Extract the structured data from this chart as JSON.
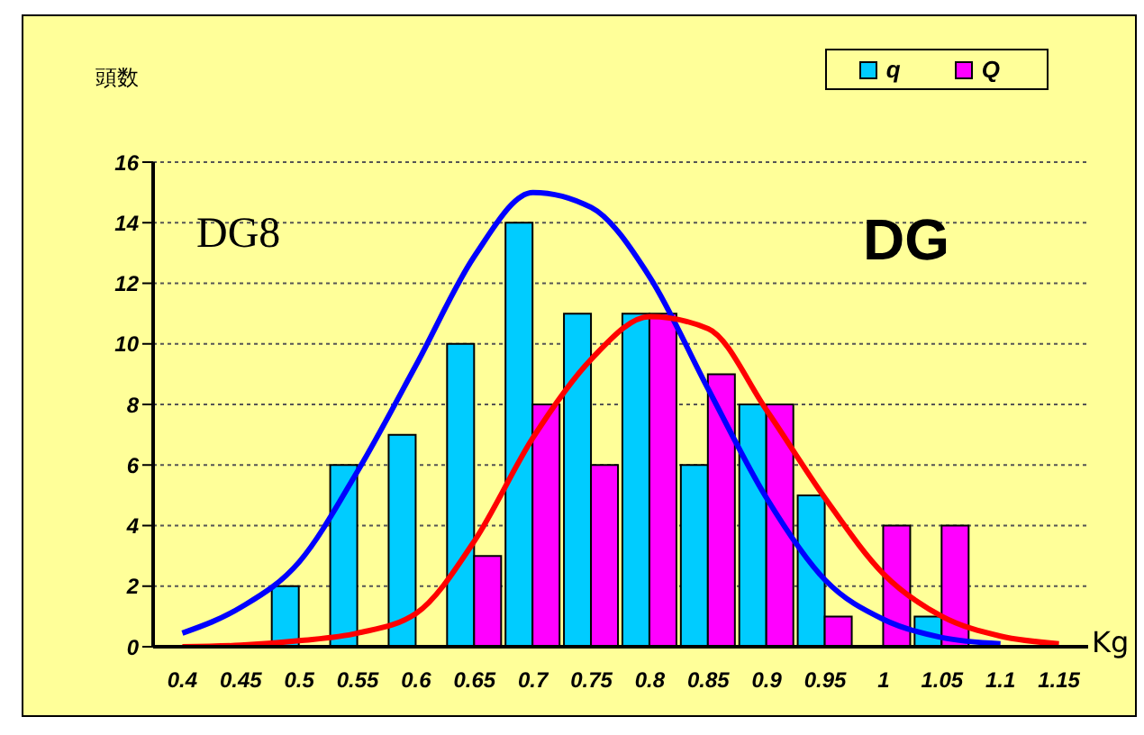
{
  "chart_data": {
    "type": "bar",
    "ylabel": "頭数",
    "xlabel": "Kg",
    "categories": [
      "0.4",
      "0.45",
      "0.5",
      "0.55",
      "0.6",
      "0.65",
      "0.7",
      "0.75",
      "0.8",
      "0.85",
      "0.9",
      "0.95",
      "1",
      "1.05",
      "1.1",
      "1.15"
    ],
    "series": [
      {
        "name": "q",
        "color": "#00ccff",
        "values": [
          0,
          0,
          2,
          6,
          7,
          10,
          14,
          11,
          11,
          6,
          8,
          5,
          0,
          1,
          0,
          0
        ]
      },
      {
        "name": "Q",
        "color": "#ff00ff",
        "values": [
          0,
          0,
          0,
          0,
          0,
          3,
          8,
          6,
          11,
          9,
          8,
          1,
          4,
          4,
          0,
          0
        ]
      },
      {
        "type": "line",
        "color": "#0000ff",
        "values": [
          0.45,
          1.3,
          2.8,
          5.8,
          9.3,
          12.9,
          15.0,
          14.5,
          12.2,
          8.5,
          4.9,
          2.2,
          0.9,
          0.3,
          0.1,
          null
        ]
      },
      {
        "type": "line",
        "color": "#ff0000",
        "values": [
          0,
          0.05,
          0.2,
          0.45,
          1.1,
          3.5,
          6.9,
          9.5,
          10.9,
          10.5,
          7.8,
          4.9,
          2.4,
          1.0,
          0.35,
          0.1
        ]
      }
    ],
    "ylim": [
      0,
      16
    ],
    "yticks": [
      0,
      2,
      4,
      6,
      8,
      10,
      12,
      14,
      16
    ],
    "grid": "y",
    "legend": "top right",
    "marker": "none",
    "line_style": "solid",
    "annotations": [
      "DG8",
      "DG"
    ]
  }
}
